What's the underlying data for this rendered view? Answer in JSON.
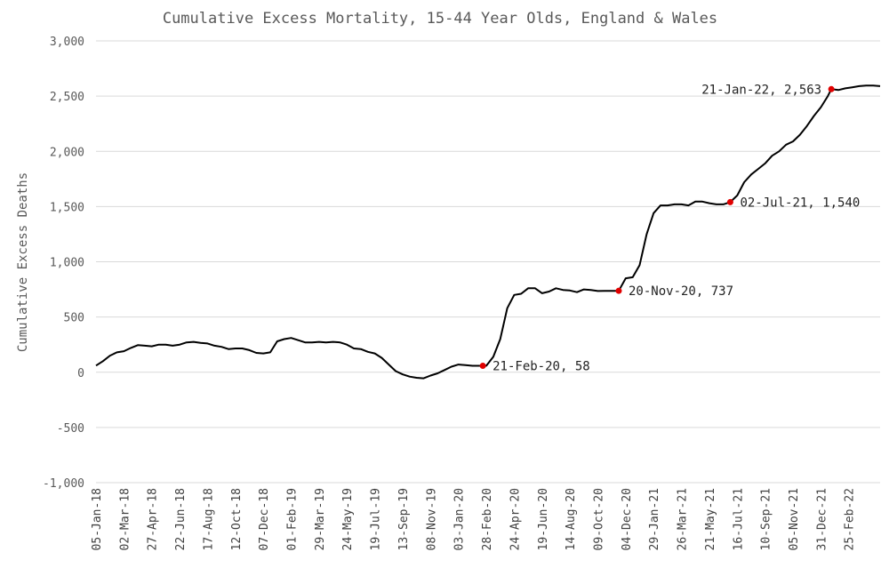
{
  "chart_data": {
    "type": "line",
    "title": "Cumulative Excess Mortality, 15-44 Year Olds, England & Wales",
    "xlabel": "",
    "ylabel": "Cumulative Excess Deaths",
    "ylim": [
      -1000,
      3000
    ],
    "yticks": [
      3000,
      2500,
      2000,
      1500,
      1000,
      500,
      0,
      -500,
      -1000
    ],
    "ytick_labels": [
      "3,000",
      "2,500",
      "2,000",
      "1,500",
      "1,000",
      "500",
      "0",
      "-500",
      "-1,000"
    ],
    "xlim": [
      "2018-01-05",
      "2022-04-29"
    ],
    "xticks": [
      "2018-01-05",
      "2018-03-02",
      "2018-04-27",
      "2018-06-22",
      "2018-08-17",
      "2018-10-12",
      "2018-12-07",
      "2019-02-01",
      "2019-03-29",
      "2019-05-24",
      "2019-07-19",
      "2019-09-13",
      "2019-11-08",
      "2020-01-03",
      "2020-02-28",
      "2020-04-24",
      "2020-06-19",
      "2020-08-14",
      "2020-10-09",
      "2020-12-04",
      "2021-01-29",
      "2021-03-26",
      "2021-05-21",
      "2021-07-16",
      "2021-09-10",
      "2021-11-05",
      "2021-12-31",
      "2022-02-25"
    ],
    "xtick_labels": [
      "05-Jan-18",
      "02-Mar-18",
      "27-Apr-18",
      "22-Jun-18",
      "17-Aug-18",
      "12-Oct-18",
      "07-Dec-18",
      "01-Feb-19",
      "29-Mar-19",
      "24-May-19",
      "19-Jul-19",
      "13-Sep-19",
      "08-Nov-19",
      "03-Jan-20",
      "28-Feb-20",
      "24-Apr-20",
      "19-Jun-20",
      "14-Aug-20",
      "09-Oct-20",
      "04-Dec-20",
      "29-Jan-21",
      "26-Mar-21",
      "21-May-21",
      "16-Jul-21",
      "10-Sep-21",
      "05-Nov-21",
      "31-Dec-21",
      "25-Feb-22"
    ],
    "grid": true,
    "legend": "none",
    "series": [
      {
        "x": [
          "2018-01-05",
          "2018-01-19",
          "2018-02-02",
          "2018-02-16",
          "2018-03-02",
          "2018-03-16",
          "2018-03-30",
          "2018-04-13",
          "2018-04-27",
          "2018-05-11",
          "2018-05-25",
          "2018-06-08",
          "2018-06-22",
          "2018-07-06",
          "2018-07-20",
          "2018-08-03",
          "2018-08-17",
          "2018-08-31",
          "2018-09-14",
          "2018-09-28",
          "2018-10-12",
          "2018-10-26",
          "2018-11-09",
          "2018-11-23",
          "2018-12-07",
          "2018-12-21",
          "2019-01-04",
          "2019-01-18",
          "2019-02-01",
          "2019-02-15",
          "2019-03-01",
          "2019-03-15",
          "2019-03-29",
          "2019-04-12",
          "2019-04-26",
          "2019-05-10",
          "2019-05-24",
          "2019-06-07",
          "2019-06-21",
          "2019-07-05",
          "2019-07-19",
          "2019-08-02",
          "2019-08-16",
          "2019-08-30",
          "2019-09-13",
          "2019-09-27",
          "2019-10-11",
          "2019-10-25",
          "2019-11-08",
          "2019-11-22",
          "2019-12-06",
          "2019-12-20",
          "2020-01-03",
          "2020-01-17",
          "2020-01-31",
          "2020-02-14",
          "2020-02-21",
          "2020-02-28",
          "2020-03-13",
          "2020-03-27",
          "2020-04-10",
          "2020-04-24",
          "2020-05-08",
          "2020-05-22",
          "2020-06-05",
          "2020-06-19",
          "2020-07-03",
          "2020-07-17",
          "2020-07-31",
          "2020-08-14",
          "2020-08-28",
          "2020-09-11",
          "2020-09-25",
          "2020-10-09",
          "2020-10-23",
          "2020-11-06",
          "2020-11-20",
          "2020-12-04",
          "2020-12-18",
          "2021-01-01",
          "2021-01-15",
          "2021-01-29",
          "2021-02-12",
          "2021-02-26",
          "2021-03-12",
          "2021-03-26",
          "2021-04-09",
          "2021-04-23",
          "2021-05-07",
          "2021-05-21",
          "2021-06-04",
          "2021-06-18",
          "2021-07-02",
          "2021-07-16",
          "2021-07-30",
          "2021-08-13",
          "2021-08-27",
          "2021-09-10",
          "2021-09-24",
          "2021-10-08",
          "2021-10-22",
          "2021-11-05",
          "2021-11-19",
          "2021-12-03",
          "2021-12-17",
          "2021-12-31",
          "2022-01-14",
          "2022-01-21",
          "2022-02-04",
          "2022-02-18",
          "2022-03-04",
          "2022-03-18",
          "2022-04-01",
          "2022-04-15",
          "2022-04-29"
        ],
        "y": [
          60,
          100,
          150,
          180,
          190,
          220,
          245,
          240,
          235,
          250,
          250,
          240,
          250,
          270,
          275,
          265,
          260,
          240,
          230,
          210,
          215,
          215,
          200,
          175,
          170,
          180,
          280,
          300,
          310,
          290,
          270,
          270,
          275,
          270,
          275,
          270,
          250,
          215,
          210,
          185,
          170,
          130,
          70,
          10,
          -20,
          -40,
          -50,
          -55,
          -30,
          -10,
          20,
          50,
          70,
          65,
          58,
          58,
          58,
          58,
          140,
          300,
          580,
          700,
          710,
          760,
          760,
          715,
          730,
          760,
          745,
          740,
          725,
          750,
          745,
          735,
          737,
          737,
          737,
          850,
          860,
          970,
          1250,
          1440,
          1510,
          1510,
          1520,
          1520,
          1510,
          1545,
          1545,
          1530,
          1520,
          1520,
          1540,
          1600,
          1720,
          1790,
          1840,
          1890,
          1960,
          2000,
          2060,
          2090,
          2150,
          2230,
          2320,
          2400,
          2500,
          2563,
          2555,
          2570,
          2580,
          2590,
          2595,
          2595,
          2590
        ]
      }
    ],
    "annotations": [
      {
        "x": "2020-02-21",
        "y": 58,
        "label": "21-Feb-20, 58"
      },
      {
        "x": "2020-11-20",
        "y": 737,
        "label": "20-Nov-20, 737"
      },
      {
        "x": "2021-07-02",
        "y": 1540,
        "label": "02-Jul-21, 1,540"
      },
      {
        "x": "2022-01-21",
        "y": 2563,
        "label": "21-Jan-22, 2,563"
      }
    ],
    "colors": {
      "line": "#000000",
      "marker": "#e00000",
      "grid": "#d9d9d9"
    }
  }
}
